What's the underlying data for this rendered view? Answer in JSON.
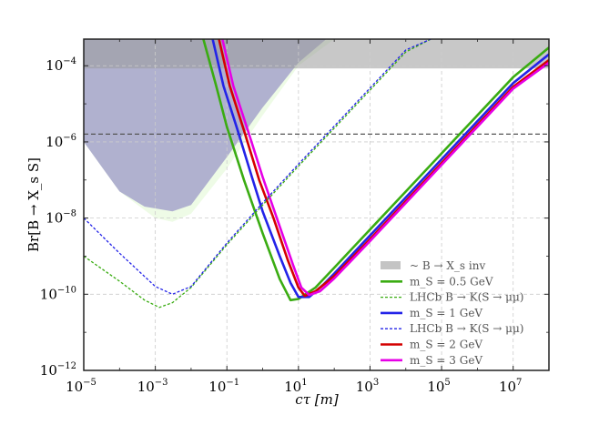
{
  "chart_data": {
    "type": "line",
    "title": "",
    "xlabel": "cτ [m]",
    "ylabel": "Br[B → X_s S]",
    "xscale": "log",
    "yscale": "log",
    "xlim": [
      1e-05,
      100000000.0
    ],
    "ylim": [
      1e-12,
      0.0005
    ],
    "grid": true,
    "x_ticks": [
      {
        "base": "10",
        "exp": "−5",
        "value": 1e-05
      },
      {
        "base": "10",
        "exp": "−3",
        "value": 0.001
      },
      {
        "base": "10",
        "exp": "−1",
        "value": 0.1
      },
      {
        "base": "10",
        "exp": "1",
        "value": 10.0
      },
      {
        "base": "10",
        "exp": "3",
        "value": 1000.0
      },
      {
        "base": "10",
        "exp": "5",
        "value": 100000.0
      },
      {
        "base": "10",
        "exp": "7",
        "value": 10000000.0
      }
    ],
    "y_ticks": [
      {
        "base": "10",
        "exp": "−4",
        "value": 0.0001
      },
      {
        "base": "10",
        "exp": "−6",
        "value": 1e-06
      },
      {
        "base": "10",
        "exp": "−8",
        "value": 1e-08
      },
      {
        "base": "10",
        "exp": "−10",
        "value": 1e-10
      },
      {
        "base": "10",
        "exp": "−12",
        "value": 1e-12
      }
    ],
    "hline": {
      "value": 1.6e-06,
      "color": "#555555",
      "style": "dashed"
    },
    "regions": [
      {
        "name": "grey-band",
        "label": "~ B → X_s inv",
        "color": "#c4c4c4",
        "ymin": 8.5e-05,
        "ymax": 0.0005,
        "xmin": 1e-05,
        "xmax": 100000000.0
      },
      {
        "name": "light-green-region",
        "color": "#eefbe6",
        "upper": [
          [
            1e-05,
            1e-06
          ],
          [
            0.0001,
            5e-08
          ],
          [
            0.001,
            1e-08
          ],
          [
            0.003,
            8e-09
          ],
          [
            0.01,
            1.3e-08
          ],
          [
            0.1,
            2e-07
          ],
          [
            1,
            5e-06
          ],
          [
            10,
            0.0001
          ],
          [
            100,
            0.0005
          ]
        ],
        "lower": [
          [
            1e-05,
            6e-06
          ],
          [
            0.0001,
            2e-07
          ],
          [
            0.001,
            2.2e-08
          ],
          [
            0.002,
            1.8e-08
          ],
          [
            0.005,
            2e-08
          ],
          [
            0.01,
            3.5e-08
          ],
          [
            0.1,
            8e-07
          ],
          [
            1,
            2e-05
          ],
          [
            10,
            0.0004
          ]
        ]
      },
      {
        "name": "purple-region",
        "color": "#b0b1cf",
        "boundary": [
          [
            1e-05,
            1e-06
          ],
          [
            0.0001,
            5e-08
          ],
          [
            0.0005,
            2e-08
          ],
          [
            0.003,
            1.5e-08
          ],
          [
            0.01,
            2.2e-08
          ],
          [
            0.1,
            4e-07
          ],
          [
            1,
            8e-06
          ],
          [
            10,
            0.00012
          ],
          [
            60,
            0.0005
          ]
        ]
      }
    ],
    "legend": {
      "placement": "lower-right",
      "entries": [
        {
          "label": "~ B → X_s inv",
          "style": "patch",
          "color": "#c4c4c4"
        },
        {
          "label": "m_S = 0.5 GeV",
          "style": "solid",
          "color": "#3aac12"
        },
        {
          "label": "LHCb B → K(S → μμ)",
          "style": "dashed",
          "color": "#3aac12"
        },
        {
          "label": "m_S = 1 GeV",
          "style": "solid",
          "color": "#2323e8"
        },
        {
          "label": "LHCb B → K(S → μμ)",
          "style": "dashed",
          "color": "#2323e8"
        },
        {
          "label": "m_S = 2 GeV",
          "style": "solid",
          "color": "#d40000"
        },
        {
          "label": "m_S = 3 GeV",
          "style": "solid",
          "color": "#e600e6"
        }
      ]
    },
    "series": [
      {
        "name": "m_S = 0.5 GeV",
        "color": "#3aac12",
        "style": "solid",
        "x": [
          0.022,
          0.05,
          0.1,
          0.3,
          1,
          3,
          6,
          10,
          30,
          100,
          1000.0,
          10000.0,
          100000.0,
          1000000.0,
          10000000.0,
          100000000.0
        ],
        "y": [
          0.0005,
          3e-05,
          2.5e-06,
          1e-07,
          4e-09,
          2.5e-10,
          7e-11,
          7.5e-11,
          1.5e-10,
          5e-10,
          5e-09,
          5e-08,
          5e-07,
          5e-06,
          5e-05,
          0.0003
        ]
      },
      {
        "name": "m_S = 1 GeV",
        "color": "#2323e8",
        "style": "solid",
        "x": [
          0.04,
          0.08,
          0.2,
          0.5,
          1,
          3,
          6,
          10,
          20,
          50,
          100,
          1000.0,
          10000.0,
          100000.0,
          1000000.0,
          10000000.0,
          100000000.0
        ],
        "y": [
          0.0005,
          3e-05,
          2e-06,
          1.2e-07,
          1.5e-08,
          1e-09,
          2e-10,
          8.5e-11,
          8.5e-11,
          1.8e-10,
          3.5e-10,
          3.5e-09,
          3.5e-08,
          3.5e-07,
          3.5e-06,
          3.5e-05,
          0.0002
        ]
      },
      {
        "name": "m_S = 2 GeV",
        "color": "#d40000",
        "style": "solid",
        "x": [
          0.06,
          0.12,
          0.3,
          0.8,
          2,
          5,
          10,
          15,
          30,
          100,
          1000.0,
          10000.0,
          100000.0,
          1000000.0,
          10000000.0,
          100000000.0
        ],
        "y": [
          0.0005,
          3e-05,
          2e-06,
          1e-07,
          1e-08,
          8e-10,
          1.5e-10,
          9e-11,
          1.2e-10,
          3e-10,
          2.8e-09,
          2.8e-08,
          2.8e-07,
          2.8e-06,
          2.8e-05,
          0.00014
        ]
      },
      {
        "name": "m_S = 3 GeV",
        "color": "#e600e6",
        "style": "solid",
        "x": [
          0.075,
          0.15,
          0.4,
          1,
          3,
          7,
          12,
          20,
          40,
          100,
          1000.0,
          10000.0,
          100000.0,
          1000000.0,
          10000000.0,
          100000000.0
        ],
        "y": [
          0.0005,
          3e-05,
          1.8e-06,
          1.2e-07,
          6e-09,
          6e-10,
          1.5e-10,
          9.5e-11,
          1.2e-10,
          2.6e-10,
          2.5e-09,
          2.5e-08,
          2.5e-07,
          2.5e-06,
          2.5e-05,
          0.00012
        ]
      },
      {
        "name": "LHCb B → K(S → μμ) (0.5 GeV)",
        "color": "#3aac12",
        "style": "dashed",
        "x": [
          1e-05,
          0.0001,
          0.0005,
          0.0013,
          0.003,
          0.01,
          0.1,
          1,
          10,
          100,
          1000.0,
          10000.0,
          50000.0
        ],
        "y": [
          1e-09,
          2.2e-10,
          7e-11,
          4.5e-11,
          6e-11,
          1.5e-10,
          2e-09,
          2.2e-08,
          2.3e-07,
          2.3e-06,
          2.3e-05,
          0.00023,
          0.0005
        ]
      },
      {
        "name": "LHCb B → K(S → μμ) (1 GeV)",
        "color": "#2323e8",
        "style": "dashed",
        "x": [
          1e-05,
          0.0001,
          0.001,
          0.003,
          0.01,
          0.1,
          1,
          10,
          100,
          1000.0,
          10000.0,
          50000.0
        ],
        "y": [
          1e-08,
          1.2e-09,
          1.6e-10,
          1e-10,
          1.6e-10,
          2.2e-09,
          2.5e-08,
          2.6e-07,
          2.6e-06,
          2.6e-05,
          0.00026,
          0.0005
        ]
      }
    ]
  }
}
